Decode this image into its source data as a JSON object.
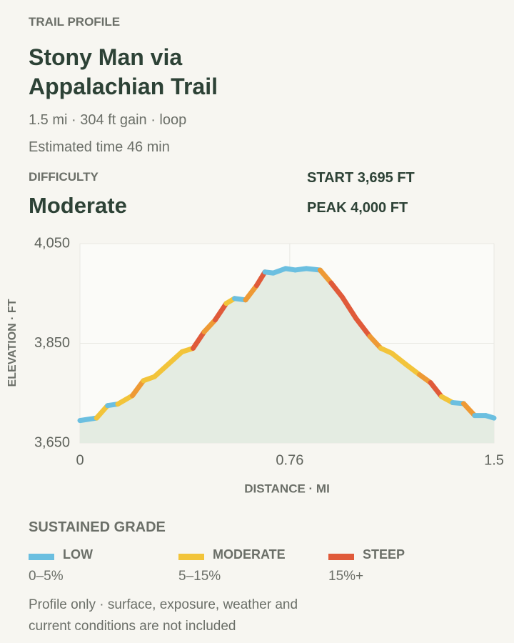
{
  "header": {
    "eyebrow": "TRAIL PROFILE",
    "title": "Stony Man via Appalachian Trail",
    "meta": "1.5 mi · 304 ft gain · loop",
    "time": "Estimated time 46 min"
  },
  "difficulty": {
    "label": "DIFFICULTY",
    "value": "Moderate"
  },
  "stats": {
    "start": "START 3,695 FT",
    "peak": "PEAK 4,000 FT"
  },
  "chart_data": {
    "type": "line",
    "x_label": "DISTANCE · MI",
    "y_label": "ELEVATION · FT",
    "x": [
      0,
      0.06,
      0.1,
      0.137,
      0.19,
      0.23,
      0.27,
      0.32,
      0.37,
      0.41,
      0.45,
      0.49,
      0.53,
      0.56,
      0.6,
      0.64,
      0.67,
      0.7,
      0.745,
      0.78,
      0.82,
      0.87,
      0.91,
      0.95,
      1.0,
      1.05,
      1.09,
      1.13,
      1.18,
      1.23,
      1.27,
      1.31,
      1.35,
      1.39,
      1.43,
      1.47,
      1.5
    ],
    "values": [
      3695,
      3700,
      3725,
      3728,
      3745,
      3775,
      3783,
      3808,
      3833,
      3840,
      3873,
      3897,
      3930,
      3940,
      3937,
      3966,
      3993,
      3991,
      4000,
      3997,
      4000,
      3997,
      3971,
      3943,
      3900,
      3864,
      3840,
      3830,
      3808,
      3787,
      3771,
      3743,
      3731,
      3729,
      3705,
      3705,
      3700
    ],
    "segment_colors": [
      "#6bbfe0",
      "#f2c43a",
      "#6bbfe0",
      "#f2c43a",
      "#ee9a35",
      "#f2c43a",
      "#f2c43a",
      "#f2c43a",
      "#f2c43a",
      "#e05a3a",
      "#ee9a35",
      "#e05a3a",
      "#f2c43a",
      "#6bbfe0",
      "#ee9a35",
      "#e05a3a",
      "#6bbfe0",
      "#6bbfe0",
      "#6bbfe0",
      "#6bbfe0",
      "#6bbfe0",
      "#ee9a35",
      "#e05a3a",
      "#e05a3a",
      "#e05a3a",
      "#ee9a35",
      "#f2c43a",
      "#f2c43a",
      "#f2c43a",
      "#ee9a35",
      "#e05a3a",
      "#f2c43a",
      "#6bbfe0",
      "#ee9a35",
      "#6bbfe0",
      "#6bbfe0"
    ],
    "area_color": "#e4ece2",
    "xlim": [
      0,
      1.5
    ],
    "xticks": [
      0,
      0.76,
      1.5
    ],
    "ylim": [
      3650,
      4050
    ],
    "yticks": [
      {
        "value": 3650,
        "label": "3,650"
      },
      {
        "value": 3850,
        "label": "3,850"
      },
      {
        "value": 4050,
        "label": "4,050"
      }
    ],
    "grid": true
  },
  "legend": {
    "title": "SUSTAINED GRADE",
    "items": [
      {
        "name": "LOW",
        "range": "0–5%",
        "color": "#6bbfe0"
      },
      {
        "name": "MODERATE",
        "range": "5–15%",
        "color": "#f2c43a"
      },
      {
        "name": "STEEP",
        "range": "15%+",
        "color": "#e05a3a"
      }
    ]
  },
  "footnote": "Profile only · surface, exposure, weather and current conditions are not included"
}
